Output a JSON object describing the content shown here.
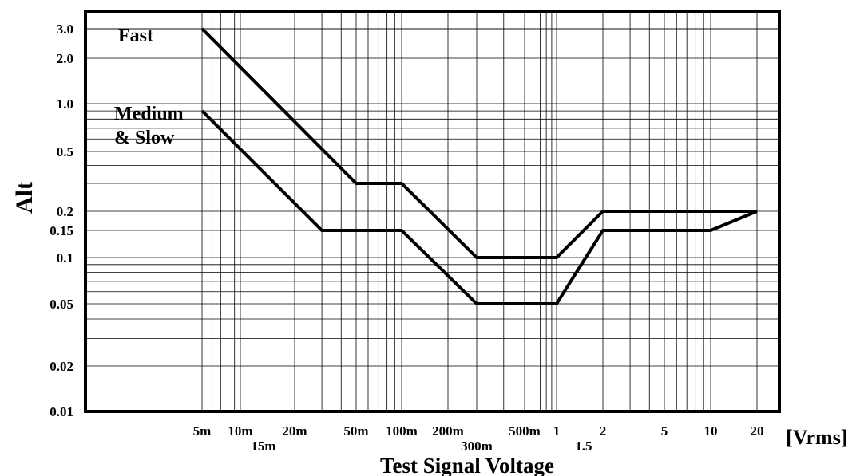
{
  "chart_data": {
    "type": "line",
    "xlabel": "Test Signal Voltage",
    "x_unit": "[Vrms]",
    "ylabel": "Alt",
    "x_scale": "log",
    "y_scale": "log",
    "xlim": [
      0.005,
      20
    ],
    "ylim": [
      0.01,
      3.0
    ],
    "grid": true,
    "x_ticks": [
      {
        "value": 0.005,
        "label": "5m"
      },
      {
        "value": 0.01,
        "label": "10m"
      },
      {
        "value": 0.015,
        "label": "15m"
      },
      {
        "value": 0.02,
        "label": "20m"
      },
      {
        "value": 0.05,
        "label": "50m"
      },
      {
        "value": 0.1,
        "label": "100m"
      },
      {
        "value": 0.2,
        "label": "200m"
      },
      {
        "value": 0.3,
        "label": "300m"
      },
      {
        "value": 0.5,
        "label": "500m"
      },
      {
        "value": 1,
        "label": "1"
      },
      {
        "value": 1.5,
        "label": "1.5"
      },
      {
        "value": 2,
        "label": "2"
      },
      {
        "value": 5,
        "label": "5"
      },
      {
        "value": 10,
        "label": "10"
      },
      {
        "value": 20,
        "label": "20"
      }
    ],
    "y_ticks": [
      {
        "value": 3.0,
        "label": "3.0"
      },
      {
        "value": 2.0,
        "label": "2.0"
      },
      {
        "value": 1.0,
        "label": "1.0"
      },
      {
        "value": 0.5,
        "label": "0.5"
      },
      {
        "value": 0.2,
        "label": "0.2"
      },
      {
        "value": 0.15,
        "label": "0.15"
      },
      {
        "value": 0.1,
        "label": "0.1"
      },
      {
        "value": 0.05,
        "label": "0.05"
      },
      {
        "value": 0.02,
        "label": "0.02"
      },
      {
        "value": 0.01,
        "label": "0.01"
      }
    ],
    "series": [
      {
        "name": "Fast",
        "x": [
          0.005,
          0.05,
          0.1,
          0.3,
          1,
          2,
          20
        ],
        "y": [
          3.0,
          0.3,
          0.3,
          0.1,
          0.1,
          0.2,
          0.2
        ]
      },
      {
        "name": "Medium & Slow",
        "name_lines": [
          "Medium",
          "& Slow"
        ],
        "x": [
          0.005,
          0.03,
          0.1,
          0.3,
          1,
          2,
          10,
          20
        ],
        "y": [
          0.9,
          0.15,
          0.15,
          0.05,
          0.05,
          0.15,
          0.15,
          0.2
        ]
      }
    ]
  }
}
